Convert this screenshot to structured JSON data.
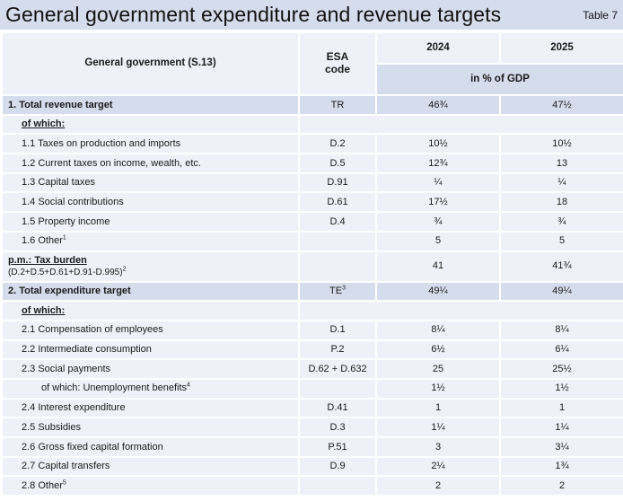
{
  "title": "General government expenditure and revenue targets",
  "table_label": "Table 7",
  "header": {
    "col1": "General government (S.13)",
    "esa_line1": "ESA",
    "esa_line2": "code",
    "year1": "2024",
    "year2": "2025",
    "unit": "in % of GDP"
  },
  "rows": [
    {
      "label": "1. Total revenue target",
      "code": "TR",
      "v2024": "46¾",
      "v2025": "47½"
    },
    {
      "label": "of which:"
    },
    {
      "label": "1.1 Taxes on production and imports",
      "code": "D.2",
      "v2024": "10½",
      "v2025": "10½"
    },
    {
      "label": "1.2 Current taxes on income, wealth, etc.",
      "code": "D.5",
      "v2024": "12¾",
      "v2025": "13"
    },
    {
      "label": "1.3 Capital taxes",
      "code": "D.91",
      "v2024": "¼",
      "v2025": "¼"
    },
    {
      "label": "1.4 Social contributions",
      "code": "D.61",
      "v2024": "17½",
      "v2025": "18"
    },
    {
      "label": "1.5 Property income",
      "code": "D.4",
      "v2024": "¾",
      "v2025": "¾"
    },
    {
      "label": "1.6 Other",
      "sup": "1",
      "code": "",
      "v2024": "5",
      "v2025": "5"
    },
    {
      "label": "p.m.: Tax burden",
      "sub": "(D.2+D.5+D.61+D.91-D.995)",
      "sup": "2",
      "code": "",
      "v2024": "41",
      "v2025": "41¾"
    },
    {
      "label": "2. Total expenditure target",
      "code": "TE",
      "code_sup": "3",
      "v2024": "49¼",
      "v2025": "49¼"
    },
    {
      "label": "of which:"
    },
    {
      "label": "2.1 Compensation of employees",
      "code": "D.1",
      "v2024": "8¼",
      "v2025": "8¼"
    },
    {
      "label": "2.2 Intermediate consumption",
      "code": "P.2",
      "v2024": "6½",
      "v2025": "6¼"
    },
    {
      "label": "2.3 Social payments",
      "code": "D.62 + D.632",
      "v2024": "25",
      "v2025": "25½"
    },
    {
      "label": "of which: Unemployment benefits",
      "sup": "4",
      "code": "",
      "v2024": "1½",
      "v2025": "1½"
    },
    {
      "label": "2.4 Interest expenditure",
      "code": "D.41",
      "v2024": "1",
      "v2025": "1"
    },
    {
      "label": "2.5 Subsidies",
      "code": "D.3",
      "v2024": "1¼",
      "v2025": "1¼"
    },
    {
      "label": "2.6 Gross fixed capital formation",
      "code": "P.51",
      "v2024": "3",
      "v2025": "3¼"
    },
    {
      "label": "2.7 Capital transfers",
      "code": "D.9",
      "v2024": "2¼",
      "v2025": "1¾"
    },
    {
      "label": "2.8 Other",
      "sup": "5",
      "code": "",
      "v2024": "2",
      "v2025": "2"
    }
  ]
}
